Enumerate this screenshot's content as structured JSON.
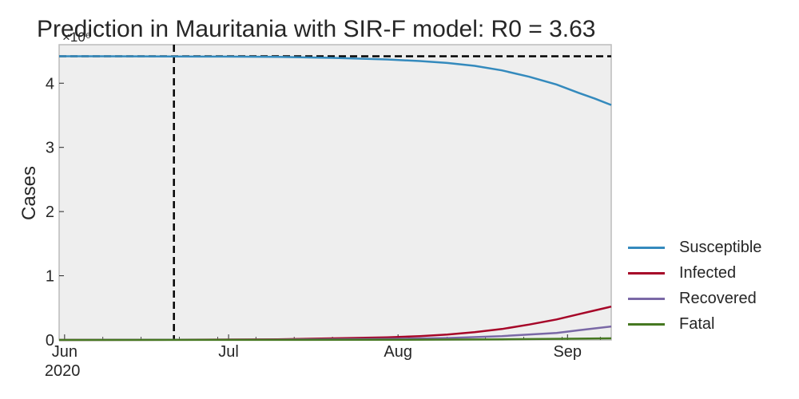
{
  "chart_data": {
    "type": "line",
    "title": "Prediction in Mauritania with SIR-F model: R0 = 3.63",
    "ylabel": "Cases",
    "xlabel": "",
    "y_multiplier_label": "×10⁶",
    "y_ticks": [
      0,
      1,
      2,
      3,
      4
    ],
    "ylim": [
      0,
      4.6
    ],
    "x_ticks": [
      {
        "date": "2020-06-01",
        "label": "Jun",
        "sublabel": "2020"
      },
      {
        "date": "2020-07-01",
        "label": "Jul"
      },
      {
        "date": "2020-08-01",
        "label": "Aug"
      },
      {
        "date": "2020-09-01",
        "label": "Sep"
      }
    ],
    "xlim": [
      "2020-05-31",
      "2020-09-09"
    ],
    "grid": false,
    "legend_position": "outside-right-bottom",
    "reference_lines": {
      "horizontal_y": 4.42,
      "vertical_date": "2020-06-21"
    },
    "series": [
      {
        "name": "Susceptible",
        "color": "#348ABD",
        "points": [
          [
            "2020-05-31",
            4.42
          ],
          [
            "2020-06-15",
            4.419
          ],
          [
            "2020-06-30",
            4.415
          ],
          [
            "2020-07-10",
            4.41
          ],
          [
            "2020-07-20",
            4.395
          ],
          [
            "2020-07-30",
            4.37
          ],
          [
            "2020-08-05",
            4.345
          ],
          [
            "2020-08-10",
            4.315
          ],
          [
            "2020-08-15",
            4.27
          ],
          [
            "2020-08-20",
            4.2
          ],
          [
            "2020-08-25",
            4.1
          ],
          [
            "2020-08-30",
            3.98
          ],
          [
            "2020-09-03",
            3.85
          ],
          [
            "2020-09-06",
            3.76
          ],
          [
            "2020-09-09",
            3.66
          ]
        ]
      },
      {
        "name": "Infected",
        "color": "#A60628",
        "points": [
          [
            "2020-05-31",
            0.0
          ],
          [
            "2020-06-21",
            0.002
          ],
          [
            "2020-07-10",
            0.01
          ],
          [
            "2020-07-20",
            0.025
          ],
          [
            "2020-07-30",
            0.04
          ],
          [
            "2020-08-05",
            0.06
          ],
          [
            "2020-08-10",
            0.085
          ],
          [
            "2020-08-15",
            0.12
          ],
          [
            "2020-08-20",
            0.17
          ],
          [
            "2020-08-25",
            0.24
          ],
          [
            "2020-08-30",
            0.32
          ],
          [
            "2020-09-03",
            0.4
          ],
          [
            "2020-09-06",
            0.46
          ],
          [
            "2020-09-09",
            0.52
          ]
        ]
      },
      {
        "name": "Recovered",
        "color": "#7A68A6",
        "points": [
          [
            "2020-05-31",
            0.0
          ],
          [
            "2020-07-10",
            0.005
          ],
          [
            "2020-07-30",
            0.015
          ],
          [
            "2020-08-10",
            0.03
          ],
          [
            "2020-08-20",
            0.06
          ],
          [
            "2020-08-30",
            0.11
          ],
          [
            "2020-09-03",
            0.15
          ],
          [
            "2020-09-06",
            0.18
          ],
          [
            "2020-09-09",
            0.21
          ]
        ]
      },
      {
        "name": "Fatal",
        "color": "#467821",
        "points": [
          [
            "2020-05-31",
            0.0
          ],
          [
            "2020-07-30",
            0.003
          ],
          [
            "2020-08-20",
            0.01
          ],
          [
            "2020-09-03",
            0.02
          ],
          [
            "2020-09-09",
            0.025
          ]
        ]
      }
    ]
  }
}
